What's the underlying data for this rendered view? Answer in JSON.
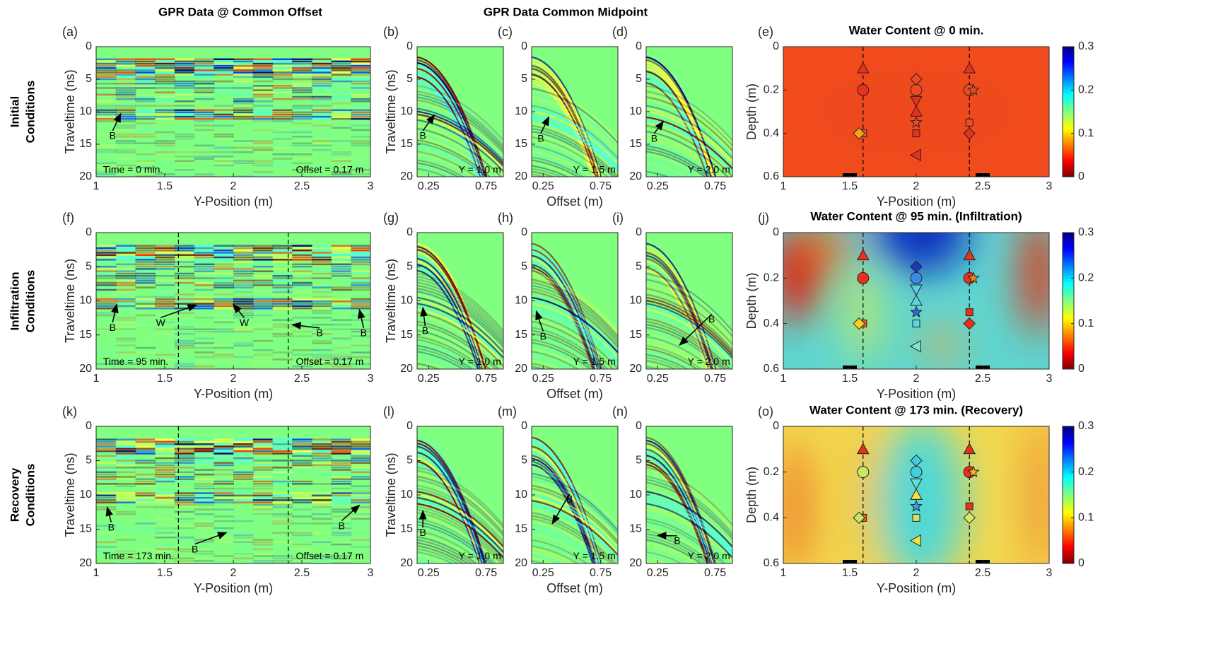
{
  "headings": [
    "GPR Data @ Common Offset",
    "GPR Data Common Midpoint"
  ],
  "row_labels": [
    [
      "Initial",
      "Conditions"
    ],
    [
      "Infiltration",
      "Conditions"
    ],
    [
      "Recovery",
      "Conditions"
    ]
  ],
  "markers": {
    "x": [
      1.6,
      1.6,
      1.6,
      1.57,
      2.0,
      2.0,
      2.0,
      2.0,
      2.0,
      2.0,
      2.0,
      2.4,
      2.4,
      2.43,
      2.4,
      2.4
    ],
    "y": [
      0.1,
      0.2,
      0.4,
      0.4,
      0.15,
      0.2,
      0.25,
      0.3,
      0.35,
      0.4,
      0.5,
      0.1,
      0.2,
      0.2,
      0.35,
      0.4
    ],
    "symbols": [
      "triangle-up",
      "circle",
      "square",
      "diamond",
      "diamond",
      "circle",
      "triangle-down",
      "triangle-up",
      "star",
      "square",
      "triangle-left",
      "triangle-up",
      "circle",
      "star",
      "square",
      "diamond"
    ]
  },
  "chart_data": [
    {
      "type": "image",
      "label": "(a)",
      "xlabel": "Y-Position (m)",
      "ylabel": "Traveltime (ns)",
      "xlim": [
        1,
        3
      ],
      "ylim": [
        0,
        20
      ],
      "xticks": [
        1,
        1.5,
        2,
        2.5,
        3
      ],
      "yticks": [
        0,
        5,
        10,
        15,
        20
      ],
      "annotations": [
        {
          "text": "B",
          "x": 1.12,
          "y": 13.8,
          "ax": 1.18,
          "ay": 10.3
        },
        {
          "text": "Time = 0 min.",
          "x": 1.05,
          "y": 19
        },
        {
          "text": "Offset = 0.17 m",
          "x": 2.95,
          "y": 19
        }
      ]
    },
    {
      "type": "image",
      "label": "(b)",
      "ylabel": "Traveltime (ns)",
      "xlim": [
        0.15,
        0.9
      ],
      "ylim": [
        0,
        20
      ],
      "xticks": [
        0.25,
        0.75
      ],
      "yticks": [
        0,
        5,
        10,
        15,
        20
      ],
      "annotations": [
        {
          "text": "B",
          "x": 0.2,
          "y": 13.8,
          "ax": 0.3,
          "ay": 10.5
        },
        {
          "text": "Y = 1.0 m",
          "x": 0.88,
          "y": 19
        }
      ]
    },
    {
      "type": "image",
      "label": "(c)",
      "xlabel": "Offset (m)",
      "xlim": [
        0.15,
        0.9
      ],
      "ylim": [
        0,
        20
      ],
      "xticks": [
        0.25,
        0.75
      ],
      "yticks": [
        0,
        5,
        10,
        15,
        20
      ],
      "annotations": [
        {
          "text": "B",
          "x": 0.23,
          "y": 14.2,
          "ax": 0.3,
          "ay": 10.8
        },
        {
          "text": "Y = 1.5 m",
          "x": 0.88,
          "y": 19
        }
      ]
    },
    {
      "type": "image",
      "label": "(d)",
      "xlim": [
        0.15,
        0.9
      ],
      "ylim": [
        0,
        20
      ],
      "xticks": [
        0.25,
        0.75
      ],
      "yticks": [
        0,
        5,
        10,
        15,
        20
      ],
      "annotations": [
        {
          "text": "B",
          "x": 0.22,
          "y": 14.2,
          "ax": 0.3,
          "ay": 11.5
        },
        {
          "text": "Y = 2.0 m",
          "x": 0.88,
          "y": 19
        }
      ]
    },
    {
      "type": "image",
      "label": "(e)",
      "title": "Water Content @ 0 min.",
      "xlabel": "Y-Position (m)",
      "ylabel": "Depth (m)",
      "xlim": [
        1,
        3
      ],
      "ylim": [
        0,
        0.6
      ],
      "xticks": [
        1,
        1.5,
        2,
        2.5,
        3
      ],
      "yticks": [
        0,
        0.2,
        0.4,
        0.6
      ],
      "vlines": [
        1.6,
        2.4
      ],
      "clim": [
        0,
        0.3
      ],
      "cticks": [
        0,
        0.1,
        0.2,
        0.3
      ],
      "marker_colors": [
        "#e8301c",
        "#e8301c",
        "#f05a28",
        "#f7a01e",
        "#f04a22",
        "#f04a22",
        "#e8301c",
        "#e8301c",
        "#f04a22",
        "#e8301c",
        "#e8301c",
        "#e8301c",
        "#f04a22",
        "#f04a22",
        "#f04a22",
        "#e8301c"
      ]
    },
    {
      "type": "image",
      "label": "(f)",
      "xlabel": "Y-Position (m)",
      "ylabel": "Traveltime (ns)",
      "xlim": [
        1,
        3
      ],
      "ylim": [
        0,
        20
      ],
      "xticks": [
        1,
        1.5,
        2,
        2.5,
        3
      ],
      "yticks": [
        0,
        5,
        10,
        15,
        20
      ],
      "vlines": [
        1.6,
        2.4
      ],
      "annotations": [
        {
          "text": "B",
          "x": 1.12,
          "y": 14,
          "ax": 1.15,
          "ay": 10.5
        },
        {
          "text": "W",
          "x": 1.47,
          "y": 13.3,
          "ax": 1.73,
          "ay": 10.6
        },
        {
          "text": "W",
          "x": 2.08,
          "y": 13.3,
          "ax": 2.0,
          "ay": 10.5
        },
        {
          "text": "B",
          "x": 2.63,
          "y": 14.8,
          "ax": 2.43,
          "ay": 13.5
        },
        {
          "text": "B",
          "x": 2.95,
          "y": 14.8,
          "ax": 2.92,
          "ay": 11.3
        },
        {
          "text": "Time = 95 min.",
          "x": 1.05,
          "y": 19
        },
        {
          "text": "Offset = 0.17 m",
          "x": 2.95,
          "y": 19
        }
      ]
    },
    {
      "type": "image",
      "label": "(g)",
      "ylabel": "Traveltime (ns)",
      "xlim": [
        0.15,
        0.9
      ],
      "ylim": [
        0,
        20
      ],
      "xticks": [
        0.25,
        0.75
      ],
      "yticks": [
        0,
        5,
        10,
        15,
        20
      ],
      "annotations": [
        {
          "text": "B",
          "x": 0.22,
          "y": 14.5,
          "ax": 0.2,
          "ay": 11
        },
        {
          "text": "Y = 1.0 m",
          "x": 0.88,
          "y": 19
        }
      ]
    },
    {
      "type": "image",
      "label": "(h)",
      "xlabel": "Offset (m)",
      "xlim": [
        0.15,
        0.9
      ],
      "ylim": [
        0,
        20
      ],
      "xticks": [
        0.25,
        0.75
      ],
      "yticks": [
        0,
        5,
        10,
        15,
        20
      ],
      "annotations": [
        {
          "text": "B",
          "x": 0.25,
          "y": 15.3,
          "ax": 0.19,
          "ay": 11.5
        },
        {
          "text": "Y = 1.5 m",
          "x": 0.88,
          "y": 19
        }
      ]
    },
    {
      "type": "image",
      "label": "(i)",
      "xlim": [
        0.15,
        0.9
      ],
      "ylim": [
        0,
        20
      ],
      "xticks": [
        0.25,
        0.75
      ],
      "yticks": [
        0,
        5,
        10,
        15,
        20
      ],
      "annotations": [
        {
          "text": "B",
          "x": 0.72,
          "y": 12.8,
          "ax": 0.44,
          "ay": 16.5
        },
        {
          "text": "Y = 2.0 m",
          "x": 0.88,
          "y": 19
        }
      ]
    },
    {
      "type": "image",
      "label": "(j)",
      "title": "Water Content @ 95 min. (Infiltration)",
      "xlabel": "Y-Position (m)",
      "ylabel": "Depth (m)",
      "xlim": [
        1,
        3
      ],
      "ylim": [
        0,
        0.6
      ],
      "xticks": [
        1,
        1.5,
        2,
        2.5,
        3
      ],
      "yticks": [
        0,
        0.2,
        0.4,
        0.6
      ],
      "vlines": [
        1.6,
        2.4
      ],
      "clim": [
        0,
        0.3
      ],
      "cticks": [
        0,
        0.1,
        0.2,
        0.3
      ],
      "marker_colors": [
        "#e8301c",
        "#e8301c",
        "#f06028",
        "#f7d020",
        "#1a3ab8",
        "#3a8ae8",
        "#5ad0e8",
        "#5ad8e0",
        "#2a6ae0",
        "#5ad8e0",
        "#7ae8c8",
        "#e8301c",
        "#e8301c",
        "#f08020",
        "#e8301c",
        "#e8301c"
      ]
    },
    {
      "type": "image",
      "label": "(k)",
      "xlabel": "Y-Position (m)",
      "ylabel": "Traveltime (ns)",
      "xlim": [
        1,
        3
      ],
      "ylim": [
        0,
        20
      ],
      "xticks": [
        1,
        1.5,
        2,
        2.5,
        3
      ],
      "yticks": [
        0,
        5,
        10,
        15,
        20
      ],
      "vlines": [
        1.6,
        2.4
      ],
      "annotations": [
        {
          "text": "B",
          "x": 1.11,
          "y": 14.8,
          "ax": 1.08,
          "ay": 11.8
        },
        {
          "text": "B",
          "x": 1.72,
          "y": 18,
          "ax": 1.95,
          "ay": 15.5
        },
        {
          "text": "B",
          "x": 2.79,
          "y": 14.6,
          "ax": 2.92,
          "ay": 11.5
        },
        {
          "text": "Time = 173 min.",
          "x": 1.05,
          "y": 19
        },
        {
          "text": "Offset = 0.17 m",
          "x": 2.95,
          "y": 19
        }
      ]
    },
    {
      "type": "image",
      "label": "(l)",
      "ylabel": "Traveltime (ns)",
      "xlim": [
        0.15,
        0.9
      ],
      "ylim": [
        0,
        20
      ],
      "xticks": [
        0.25,
        0.75
      ],
      "yticks": [
        0,
        5,
        10,
        15,
        20
      ],
      "annotations": [
        {
          "text": "B",
          "x": 0.2,
          "y": 15.6,
          "ax": 0.2,
          "ay": 12.3
        },
        {
          "text": "Y = 1.0 m",
          "x": 0.88,
          "y": 19
        }
      ]
    },
    {
      "type": "image",
      "label": "(m)",
      "xlabel": "Offset (m)",
      "xlim": [
        0.15,
        0.9
      ],
      "ylim": [
        0,
        20
      ],
      "xticks": [
        0.25,
        0.75
      ],
      "yticks": [
        0,
        5,
        10,
        15,
        20
      ],
      "annotations": [
        {
          "text": "B",
          "x": 0.48,
          "y": 10.7,
          "ax": 0.33,
          "ay": 14.2
        },
        {
          "text": "Y = 1.5 m",
          "x": 0.88,
          "y": 19
        }
      ]
    },
    {
      "type": "image",
      "label": "(n)",
      "xlim": [
        0.15,
        0.9
      ],
      "ylim": [
        0,
        20
      ],
      "xticks": [
        0.25,
        0.75
      ],
      "yticks": [
        0,
        5,
        10,
        15,
        20
      ],
      "annotations": [
        {
          "text": "B",
          "x": 0.42,
          "y": 16.8,
          "ax": 0.25,
          "ay": 15.9
        },
        {
          "text": "Y = 2.0 m",
          "x": 0.88,
          "y": 19
        }
      ]
    },
    {
      "type": "image",
      "label": "(o)",
      "title": "Water Content @ 173 min. (Recovery)",
      "xlabel": "Y-Position (m)",
      "ylabel": "Depth (m)",
      "xlim": [
        1,
        3
      ],
      "ylim": [
        0,
        0.6
      ],
      "xticks": [
        1,
        1.5,
        2,
        2.5,
        3
      ],
      "yticks": [
        0,
        0.2,
        0.4,
        0.6
      ],
      "vlines": [
        1.6,
        2.4
      ],
      "clim": [
        0,
        0.3
      ],
      "cticks": [
        0,
        0.1,
        0.2,
        0.3
      ],
      "marker_colors": [
        "#e8301c",
        "#c8e860",
        "#f06028",
        "#c8e860",
        "#40d0e0",
        "#40d0e0",
        "#60e0d0",
        "#f0e040",
        "#3aa0e0",
        "#c8e860",
        "#f0e040",
        "#e8301c",
        "#e8301c",
        "#f0b030",
        "#e8301c",
        "#d8e860"
      ]
    }
  ]
}
